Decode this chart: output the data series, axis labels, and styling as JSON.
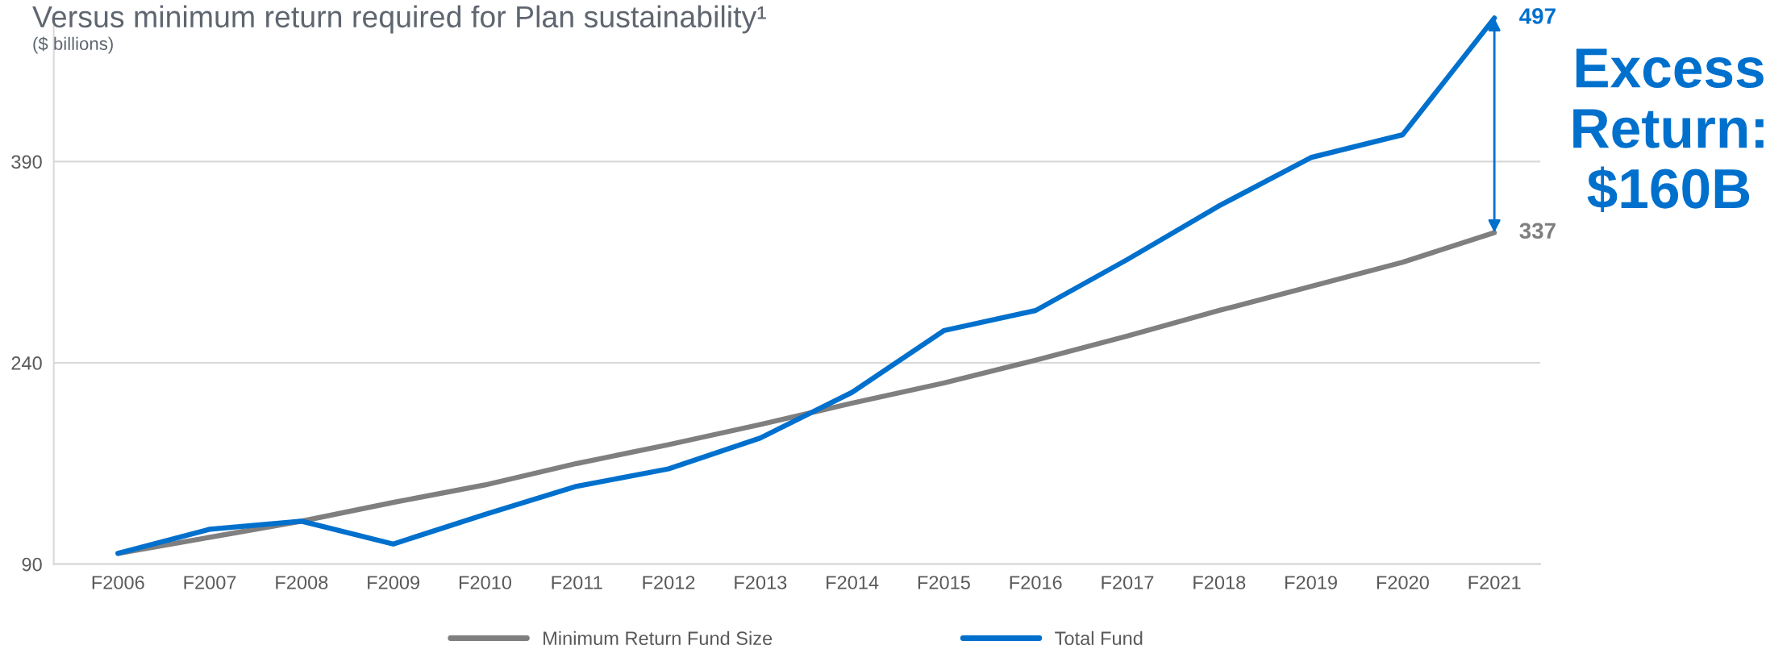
{
  "chart_data": {
    "type": "line",
    "title": "Versus minimum return required for Plan sustainability¹",
    "subtitle": "($ billions)",
    "categories": [
      "F2006",
      "F2007",
      "F2008",
      "F2009",
      "F2010",
      "F2011",
      "F2012",
      "F2013",
      "F2014",
      "F2015",
      "F2016",
      "F2017",
      "F2018",
      "F2019",
      "F2020",
      "F2021"
    ],
    "series": [
      {
        "name": "Minimum Return Fund Size",
        "color": "#7f7f7f",
        "values": [
          98,
          110,
          122,
          136,
          149,
          165,
          179,
          194,
          210,
          225,
          242,
          260,
          279,
          297,
          315,
          337
        ],
        "value_labels": [
          null,
          null,
          null,
          null,
          null,
          null,
          null,
          null,
          null,
          null,
          null,
          null,
          null,
          null,
          null,
          "337"
        ]
      },
      {
        "name": "Total Fund",
        "color": "#0070cd",
        "values": [
          98,
          116,
          122,
          105,
          127,
          148,
          161,
          184,
          218,
          264,
          279,
          317,
          357,
          393,
          410,
          497
        ],
        "value_labels": [
          null,
          null,
          null,
          null,
          null,
          null,
          null,
          null,
          null,
          null,
          null,
          null,
          null,
          null,
          null,
          "497"
        ]
      }
    ],
    "ylim": [
      90,
      500
    ],
    "yticks": [
      90,
      240,
      390
    ],
    "grid": "y",
    "legend": "bottom",
    "marker": "none",
    "line_style": "solid",
    "annotations": [
      "Excess Return: $160B"
    ]
  }
}
